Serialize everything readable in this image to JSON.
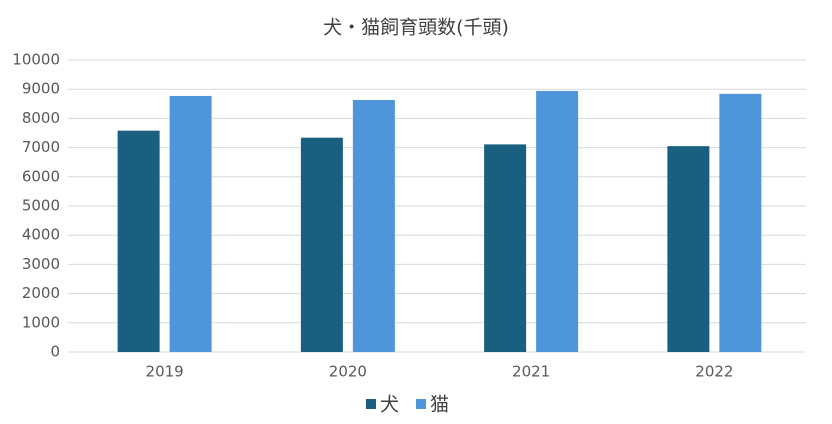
{
  "chart_data": {
    "type": "bar",
    "title": "犬・猫飼育頭数(千頭)",
    "categories": [
      "2019",
      "2020",
      "2021",
      "2022"
    ],
    "series": [
      {
        "name": "犬",
        "color": "#1a5f7f",
        "values": [
          7580,
          7340,
          7110,
          7050
        ]
      },
      {
        "name": "猫",
        "color": "#4e95d9",
        "values": [
          8770,
          8630,
          8940,
          8840
        ]
      }
    ],
    "ylim": [
      0,
      10000
    ],
    "yticks": [
      0,
      1000,
      2000,
      3000,
      4000,
      5000,
      6000,
      7000,
      8000,
      9000,
      10000
    ],
    "grid": true,
    "legend": "bottom"
  }
}
